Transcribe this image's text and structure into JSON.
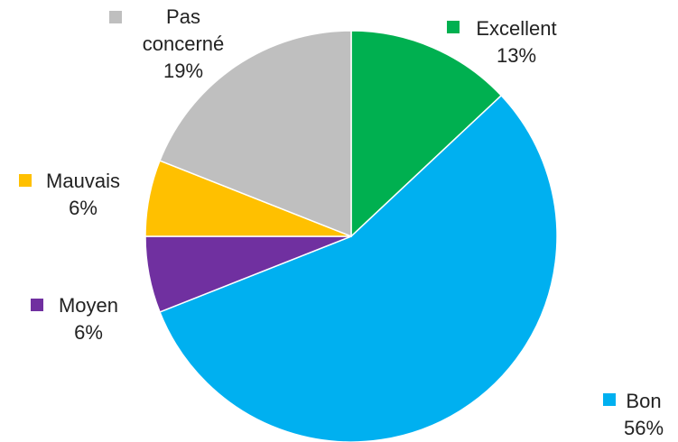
{
  "chart_data": {
    "type": "pie",
    "title": "",
    "legend": "labels beside slices",
    "slices": [
      {
        "name": "Excellent",
        "value": 13,
        "label": "13%",
        "color": "#00b050"
      },
      {
        "name": "Bon",
        "value": 56,
        "label": "56%",
        "color": "#00b0f0"
      },
      {
        "name": "Moyen",
        "value": 6,
        "label": "6%",
        "color": "#7030a0"
      },
      {
        "name": "Mauvais",
        "value": 6,
        "label": "6%",
        "color": "#ffc000"
      },
      {
        "name": "Pas concerné",
        "value": 19,
        "label": "19%",
        "color": "#bfbfbf"
      }
    ]
  }
}
